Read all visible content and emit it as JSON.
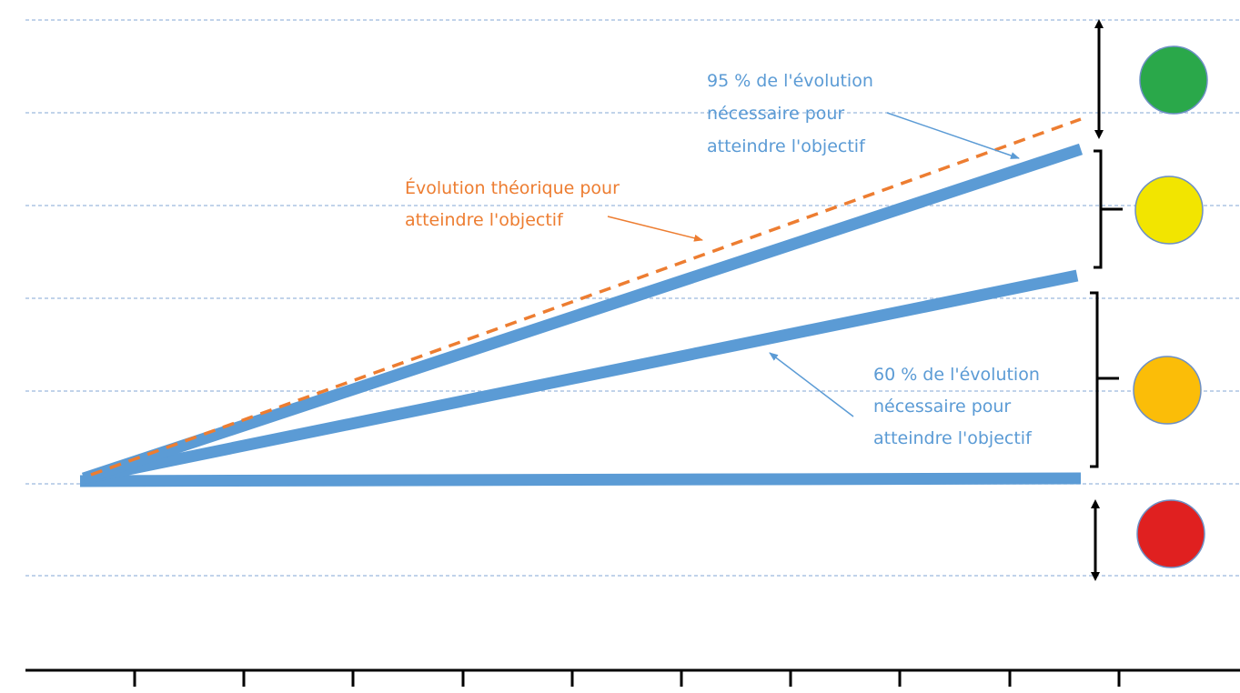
{
  "colors": {
    "blue": "#5b9bd5",
    "orange": "#ed7d31",
    "grid": "#9cb9dd",
    "axis": "#000000",
    "green": "#2aa84a",
    "yellow": "#f2e500",
    "amber": "#fbbd08",
    "red": "#e02020"
  },
  "labels": {
    "ninety_five": [
      "95 % de l'évolution",
      "nécessaire pour",
      "atteindre l'objectif"
    ],
    "theoretical": [
      "Évolution théorique pour",
      "atteindre l'objectif"
    ],
    "sixty": [
      "60 % de l'évolution",
      "nécessaire pour",
      "atteindre l'objectif"
    ]
  },
  "status_circles": [
    "green",
    "yellow",
    "amber",
    "red"
  ]
}
